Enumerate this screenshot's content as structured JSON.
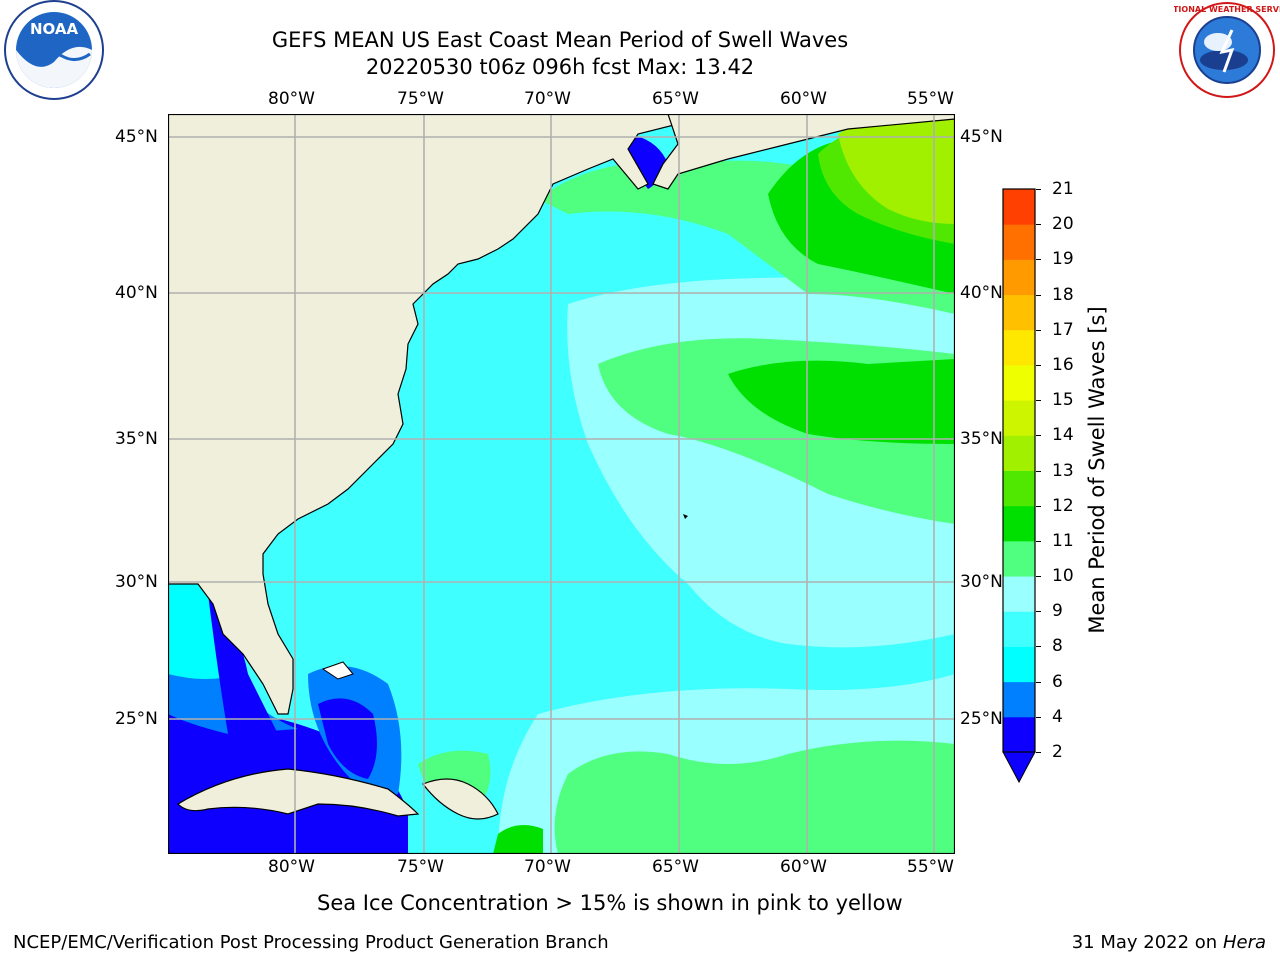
{
  "title_line1": "GEFS MEAN US East Coast Mean Period of Swell Waves",
  "title_line2": "20220530 t06z 096h fcst   Max: 13.42",
  "logos": {
    "noaa": {
      "icon": "noaa-logo",
      "text": "NOAA"
    },
    "nws": {
      "icon": "nws-logo",
      "text": "NATIONAL WEATHER SERVICE"
    }
  },
  "map": {
    "lon_labels": [
      "80°W",
      "75°W",
      "70°W",
      "65°W",
      "60°W",
      "55°W"
    ],
    "lat_labels": [
      "45°N",
      "40°N",
      "35°N",
      "30°N",
      "25°N"
    ],
    "colors": {
      "land": "#efefdc",
      "grid": "#b0b0b0",
      "coast": "#000000",
      "sea_ice_note_colors": [
        "#ff80c0",
        "#ffff00"
      ]
    }
  },
  "colorbar": {
    "label": "Mean Period of Swell Waves [s]",
    "ticks": [
      "2",
      "4",
      "6",
      "8",
      "9",
      "10",
      "11",
      "12",
      "13",
      "14",
      "15",
      "16",
      "17",
      "18",
      "19",
      "20",
      "21"
    ],
    "colors": [
      "#0d00ff",
      "#0080ff",
      "#00ffff",
      "#40ffff",
      "#99ffff",
      "#50ff80",
      "#00e000",
      "#50e800",
      "#a0f000",
      "#cdf500",
      "#eeff00",
      "#ffe800",
      "#ffc000",
      "#ff9a00",
      "#ff7000",
      "#ff4000",
      "#ff0000"
    ],
    "extend_color": "#0d00ff"
  },
  "caption": "Sea Ice Concentration > 15% is shown in pink to yellow",
  "footer_left": "NCEP/EMC/Verification Post Processing Product Generation Branch",
  "footer_right_date": "31 May 2022 on",
  "footer_right_host": "Hera"
}
